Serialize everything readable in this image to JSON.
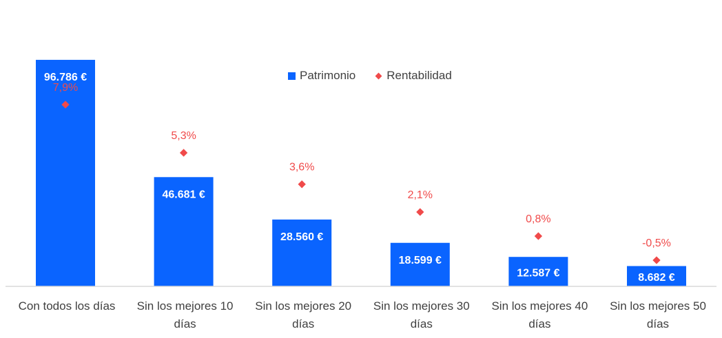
{
  "chart_data": {
    "type": "bar",
    "categories": [
      [
        "Con todos los días"
      ],
      [
        "Sin los mejores 10",
        "días"
      ],
      [
        "Sin los mejores 20",
        "días"
      ],
      [
        "Sin los mejores 30",
        "días"
      ],
      [
        "Sin los mejores 40",
        "días"
      ],
      [
        "Sin los mejores 50",
        "días"
      ]
    ],
    "series": [
      {
        "name": "Patrimonio",
        "type": "bar",
        "color": "#0a64ff",
        "values": [
          96786,
          46681,
          28560,
          18599,
          12587,
          8682
        ],
        "labels": [
          "96.786 €",
          "46.681 €",
          "28.560 €",
          "18.599 €",
          "12.587 €",
          "8.682 €"
        ]
      },
      {
        "name": "Rentabilidad",
        "type": "scatter",
        "color": "#f04a4a",
        "values": [
          7.9,
          5.3,
          3.6,
          2.1,
          0.8,
          -0.5
        ],
        "labels": [
          "7,9%",
          "5,3%",
          "3,6%",
          "2,1%",
          "0,8%",
          "-0,5%"
        ]
      }
    ],
    "legend_position": "top-center"
  }
}
